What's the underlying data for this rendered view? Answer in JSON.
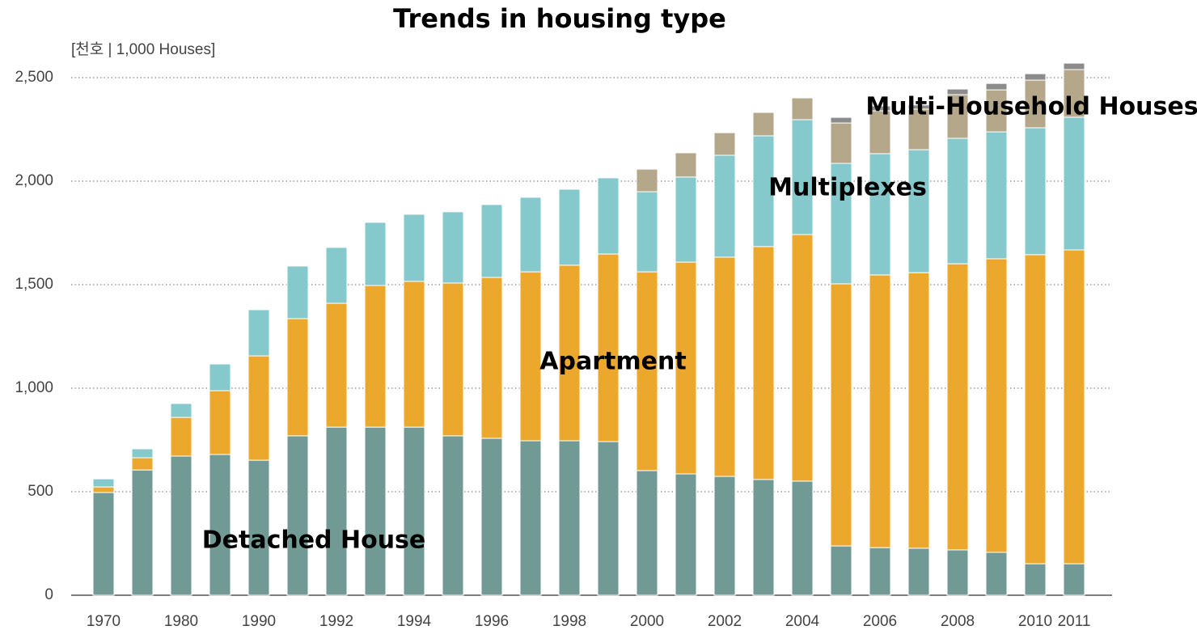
{
  "chart_data": {
    "type": "stacked_bar",
    "title": "Trends in housing type",
    "unit_label": "[천호 | 1,000 Houses]",
    "categories": [
      "1970",
      null,
      "1980",
      null,
      "1990",
      null,
      "1992",
      null,
      "1994",
      null,
      "1996",
      null,
      "1998",
      null,
      "2000",
      null,
      "2002",
      null,
      "2004",
      null,
      "2006",
      null,
      "2008",
      null,
      "2010",
      "2011"
    ],
    "series": [
      {
        "name": "Detached House",
        "color": "#719a95",
        "values": [
          496,
          605,
          672,
          680,
          652,
          770,
          812,
          812,
          812,
          770,
          758,
          746,
          746,
          742,
          602,
          586,
          574,
          559,
          551,
          238,
          230,
          227,
          219,
          207,
          152,
          152
        ]
      },
      {
        "name": "Apartment",
        "color": "#eca82c",
        "values": [
          27,
          59,
          187,
          308,
          504,
          566,
          598,
          684,
          704,
          738,
          777,
          816,
          848,
          906,
          960,
          1023,
          1059,
          1125,
          1191,
          1266,
          1317,
          1331,
          1382,
          1418,
          1493,
          1516
        ]
      },
      {
        "name": "Multiplexes",
        "color": "#86c9cd",
        "values": [
          39,
          43,
          67,
          129,
          223,
          254,
          270,
          305,
          324,
          344,
          352,
          360,
          367,
          368,
          387,
          411,
          492,
          535,
          555,
          582,
          586,
          594,
          606,
          613,
          613,
          641
        ]
      },
      {
        "name": "Multi-Household Houses",
        "color": "#b5a789",
        "values": [
          null,
          null,
          null,
          null,
          null,
          null,
          null,
          null,
          null,
          null,
          null,
          null,
          null,
          null,
          109,
          117,
          109,
          113,
          105,
          195,
          207,
          196,
          211,
          203,
          230,
          230
        ]
      },
      {
        "color": "#8c8c8c",
        "values": [
          null,
          null,
          null,
          null,
          null,
          null,
          null,
          null,
          null,
          null,
          null,
          null,
          null,
          null,
          null,
          null,
          null,
          null,
          null,
          27,
          23,
          20,
          27,
          31,
          31,
          31
        ]
      }
    ],
    "ylim": [
      0,
      2600
    ],
    "yticks": [
      0,
      500,
      {
        "value": 1000,
        "label": "1,000"
      },
      {
        "value": 1500,
        "label": "1,500"
      },
      {
        "value": 2000,
        "label": "2,000"
      },
      {
        "value": 2500,
        "label": "2,500"
      }
    ],
    "grid": true
  }
}
